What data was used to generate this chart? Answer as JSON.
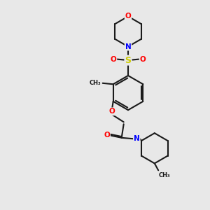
{
  "background_color": "#e8e8e8",
  "bond_color": "#1a1a1a",
  "atom_colors": {
    "O": "#ff0000",
    "N": "#0000ff",
    "S": "#cccc00",
    "C": "#1a1a1a"
  },
  "figsize": [
    3.0,
    3.0
  ],
  "dpi": 100
}
